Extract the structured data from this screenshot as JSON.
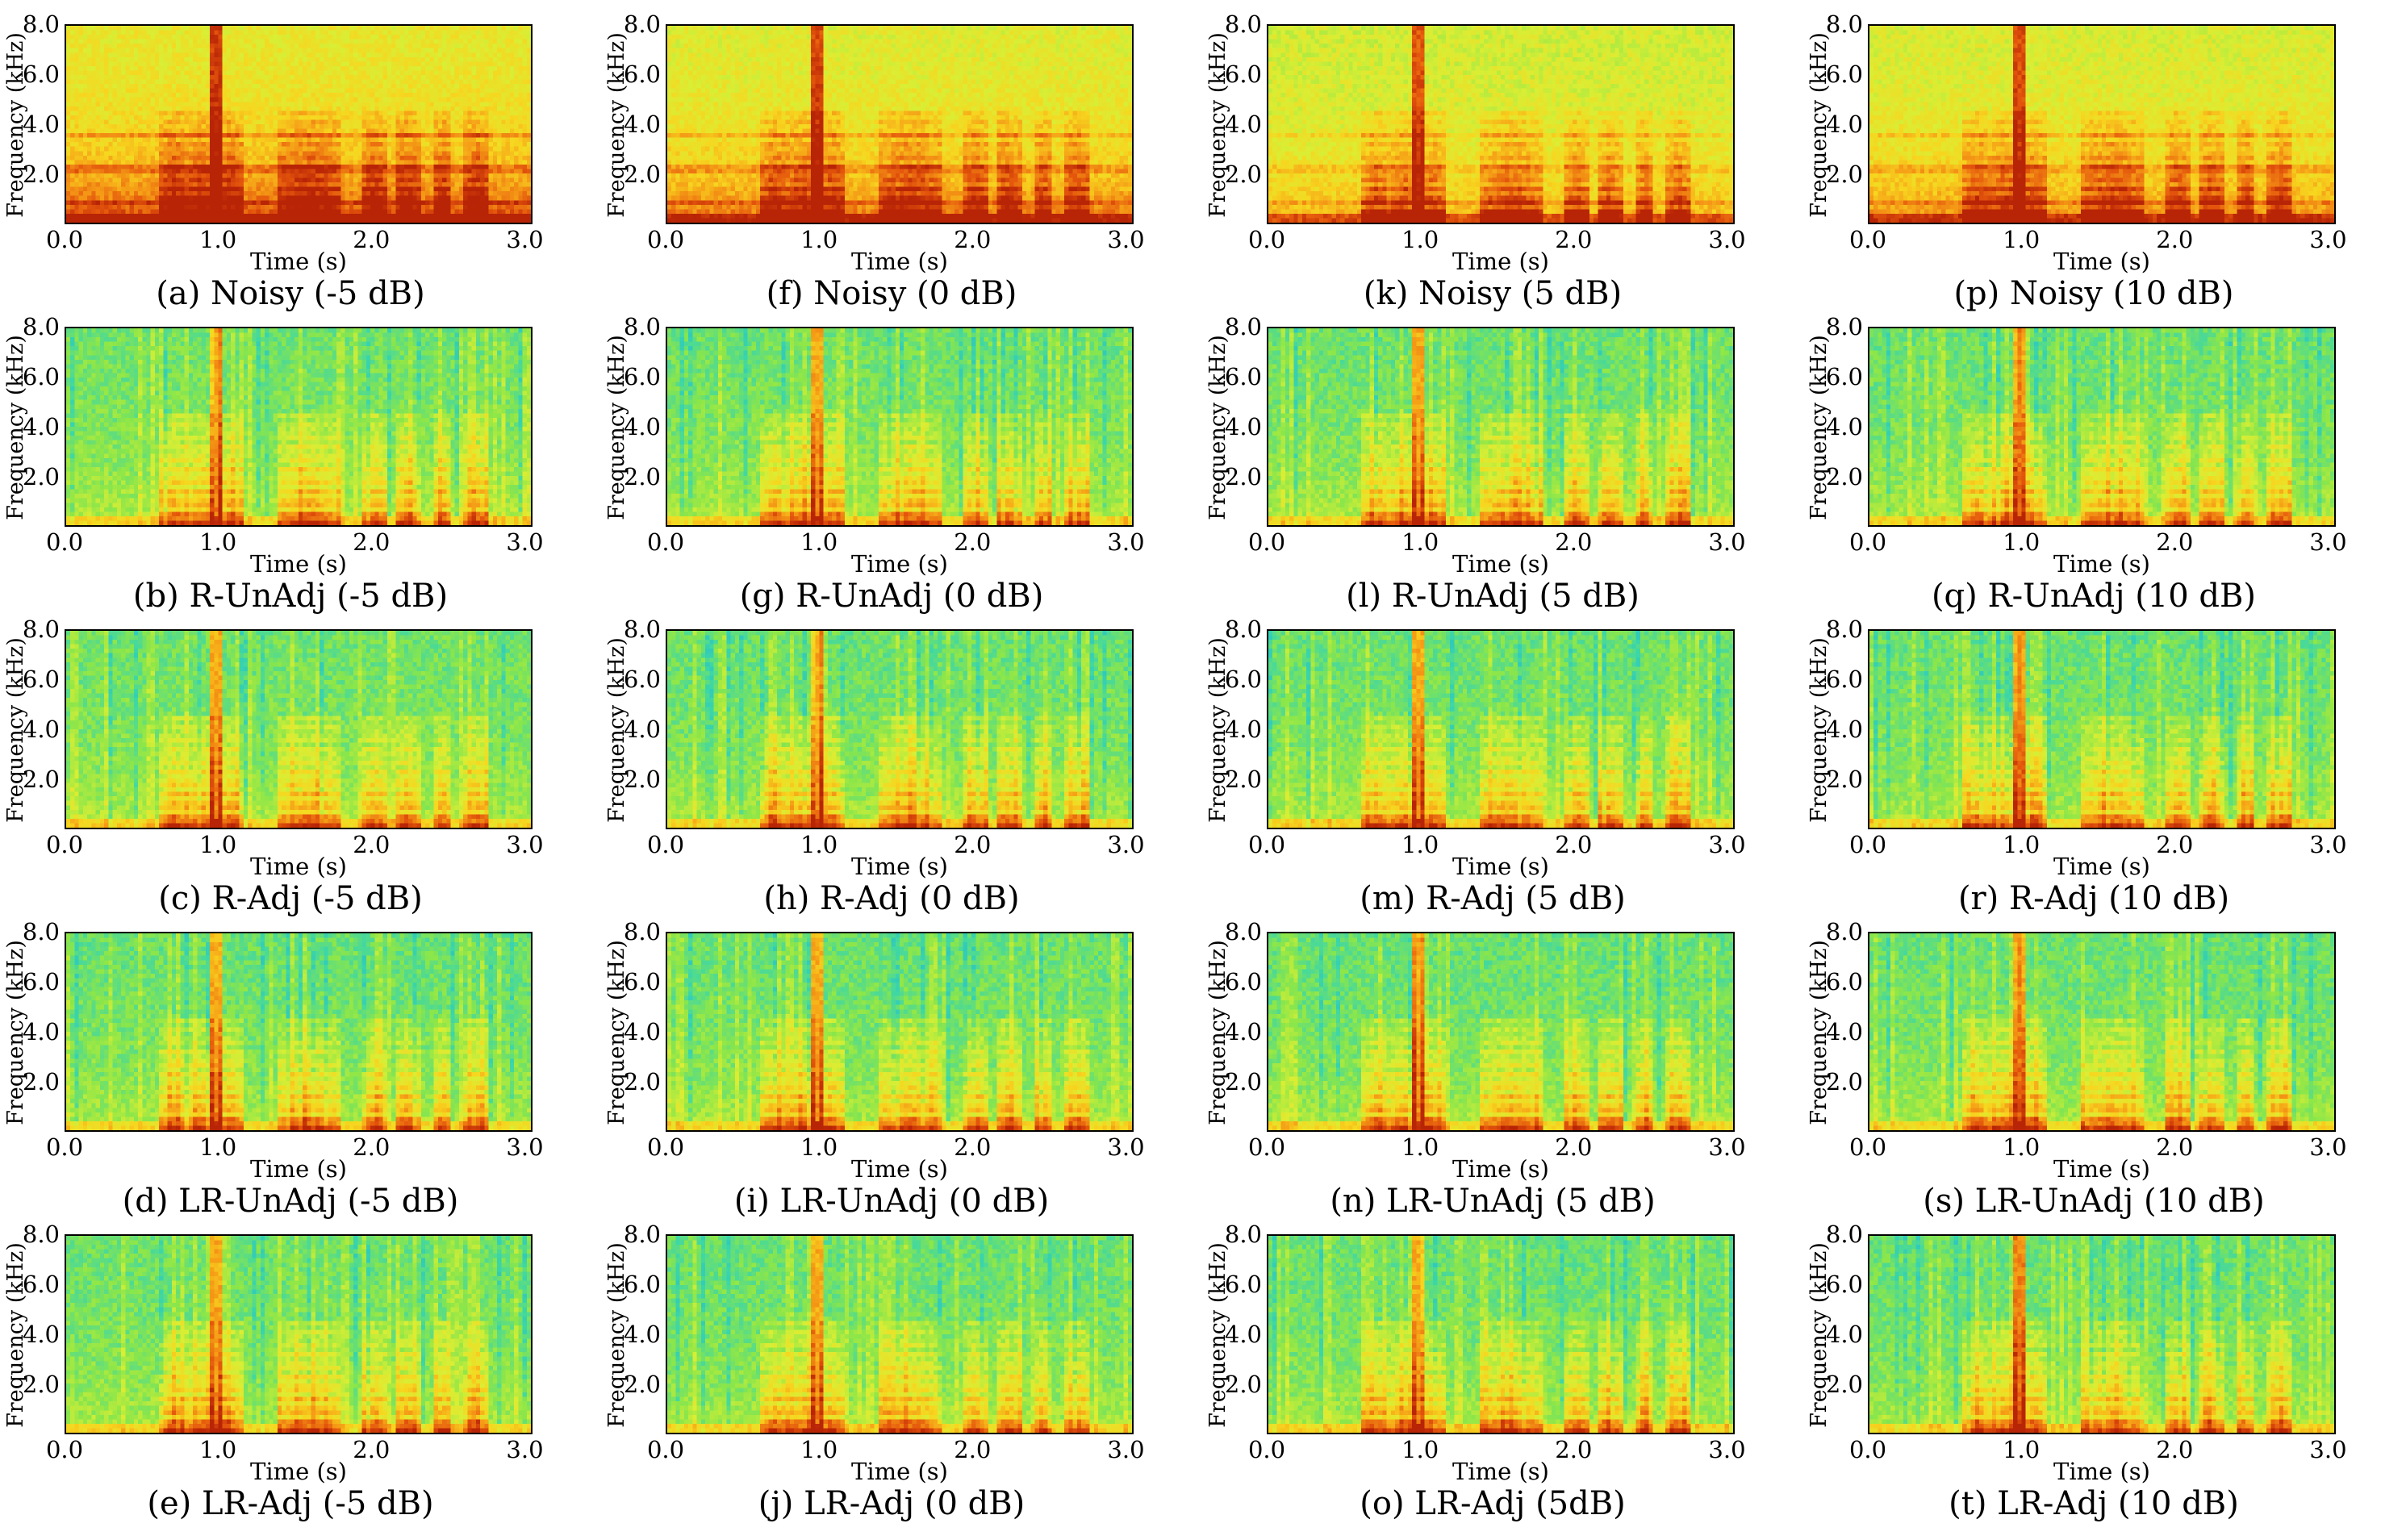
{
  "colors": {
    "colormap": [
      "#1f7fd0",
      "#1fb7d8",
      "#3cd6a8",
      "#8be64a",
      "#d9ee34",
      "#f7d61f",
      "#f59b16",
      "#e4560c",
      "#b82406"
    ],
    "axis": "#000000",
    "background": "#ffffff"
  },
  "chart_data": {
    "type": "heatmap",
    "description_grid": "5 rows x 4 columns of spectrograms",
    "xlabel": "Time (s)",
    "ylabel": "Frequency (kHz)",
    "xlim": [
      0,
      3.05
    ],
    "ylim": [
      0,
      8.0
    ],
    "xticks": [
      "0.0",
      "1.0",
      "2.0",
      "3.0"
    ],
    "xtick_values": [
      0,
      1,
      2,
      3
    ],
    "yticks": [
      "8.0",
      "6.0",
      "4.0",
      "2.0"
    ],
    "ytick_values": [
      8,
      6,
      4,
      2
    ],
    "columns": [
      "-5 dB",
      "0 dB",
      "5 dB",
      "10 dB"
    ],
    "rows": [
      "Noisy",
      "R-UnAdj",
      "R-Adj",
      "LR-UnAdj",
      "LR-Adj"
    ],
    "speech_segments_s": [
      [
        0.62,
        0.8
      ],
      [
        0.8,
        0.98
      ],
      [
        1.0,
        1.16
      ],
      [
        1.38,
        1.8
      ],
      [
        1.95,
        2.1
      ],
      [
        2.15,
        2.32
      ],
      [
        2.42,
        2.52
      ],
      [
        2.62,
        2.78
      ]
    ],
    "transient_time_s": 0.98,
    "noise_bands_khz": [
      3.5,
      2.2,
      0.8
    ],
    "panels": [
      {
        "caption": "(a) Noisy (-5 dB)",
        "noise_level": 0.95,
        "method": "noisy"
      },
      {
        "caption": "(f) Noisy (0 dB)",
        "noise_level": 0.78,
        "method": "noisy"
      },
      {
        "caption": "(k) Noisy (5 dB)",
        "noise_level": 0.55,
        "method": "noisy"
      },
      {
        "caption": "(p) Noisy (10 dB)",
        "noise_level": 0.68,
        "method": "noisy"
      },
      {
        "caption": "(b) R-UnAdj (-5 dB)",
        "noise_level": 0.35,
        "method": "enhanced"
      },
      {
        "caption": "(g) R-UnAdj (0 dB)",
        "noise_level": 0.28,
        "method": "enhanced"
      },
      {
        "caption": "(l) R-UnAdj (5 dB)",
        "noise_level": 0.25,
        "method": "enhanced"
      },
      {
        "caption": "(q) R-UnAdj (10 dB)",
        "noise_level": 0.22,
        "method": "enhanced"
      },
      {
        "caption": "(c) R-Adj (-5 dB)",
        "noise_level": 0.3,
        "method": "enhanced"
      },
      {
        "caption": "(h) R-Adj (0 dB)",
        "noise_level": 0.22,
        "method": "enhanced"
      },
      {
        "caption": "(m) R-Adj (5 dB)",
        "noise_level": 0.24,
        "method": "enhanced"
      },
      {
        "caption": "(r) R-Adj (10 dB)",
        "noise_level": 0.2,
        "method": "enhanced"
      },
      {
        "caption": "(d) LR-UnAdj (-5 dB)",
        "noise_level": 0.2,
        "method": "enhanced"
      },
      {
        "caption": "(i) LR-UnAdj (0 dB)",
        "noise_level": 0.2,
        "method": "enhanced"
      },
      {
        "caption": "(n) LR-UnAdj (5 dB)",
        "noise_level": 0.15,
        "method": "enhanced"
      },
      {
        "caption": "(s) LR-UnAdj (10 dB)",
        "noise_level": 0.2,
        "method": "enhanced"
      },
      {
        "caption": "(e) LR-Adj (-5 dB)",
        "noise_level": 0.26,
        "method": "enhanced"
      },
      {
        "caption": "(j) LR-Adj (0 dB)",
        "noise_level": 0.18,
        "method": "enhanced"
      },
      {
        "caption": "(o) LR-Adj (5dB)",
        "noise_level": 0.18,
        "method": "enhanced"
      },
      {
        "caption": "(t) LR-Adj (10 dB)",
        "noise_level": 0.2,
        "method": "enhanced"
      }
    ]
  }
}
